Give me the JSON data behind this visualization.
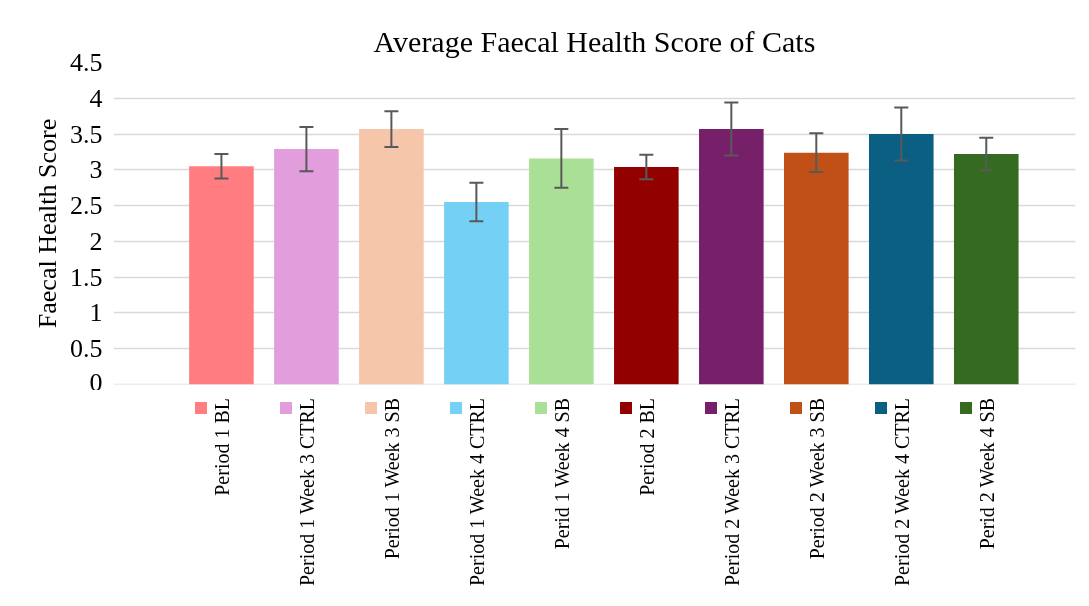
{
  "chart_data": {
    "type": "bar",
    "title": "Average Faecal Health Score of Cats",
    "ylabel": "Faecal Health Score",
    "categories": [
      null
    ],
    "series": [
      {
        "name": "Period 1 BL",
        "color": "#ff7c80",
        "values": [
          3.05
        ],
        "errors": [
          0.17
        ]
      },
      {
        "name": "Period 1 Week 3 CTRL",
        "color": "#e29ddc",
        "values": [
          3.29
        ],
        "errors": [
          0.31
        ]
      },
      {
        "name": "Period 1 Week 3 SB",
        "color": "#f5c6aa",
        "values": [
          3.57
        ],
        "errors": [
          0.25
        ]
      },
      {
        "name": "Period 1 Week 4 CTRL",
        "color": "#75d0f5",
        "values": [
          2.55
        ],
        "errors": [
          0.27
        ]
      },
      {
        "name": "Perid 1 Week 4 SB",
        "color": "#a9e095",
        "values": [
          3.16
        ],
        "errors": [
          0.41
        ]
      },
      {
        "name": "Period 2 BL",
        "color": "#920000",
        "values": [
          3.04
        ],
        "errors": [
          0.17
        ]
      },
      {
        "name": "Period 2 Week 3 CTRL",
        "color": "#762069",
        "values": [
          3.57
        ],
        "errors": [
          0.37
        ]
      },
      {
        "name": "Period 2 Week 3 SB",
        "color": "#c05016",
        "values": [
          3.24
        ],
        "errors": [
          0.27
        ]
      },
      {
        "name": "Period 2 Week 4 CTRL",
        "color": "#0b5f83",
        "values": [
          3.5
        ],
        "errors": [
          0.37
        ]
      },
      {
        "name": "Perid 2 Week 4 SB",
        "color": "#346b20",
        "values": [
          3.22
        ],
        "errors": [
          0.23
        ]
      }
    ],
    "ylim": [
      0,
      4.5
    ],
    "yticks": [
      0,
      0.5,
      1,
      1.5,
      2,
      2.5,
      3,
      3.5,
      4,
      4.5
    ],
    "grid": "y",
    "legend": "bottom"
  }
}
